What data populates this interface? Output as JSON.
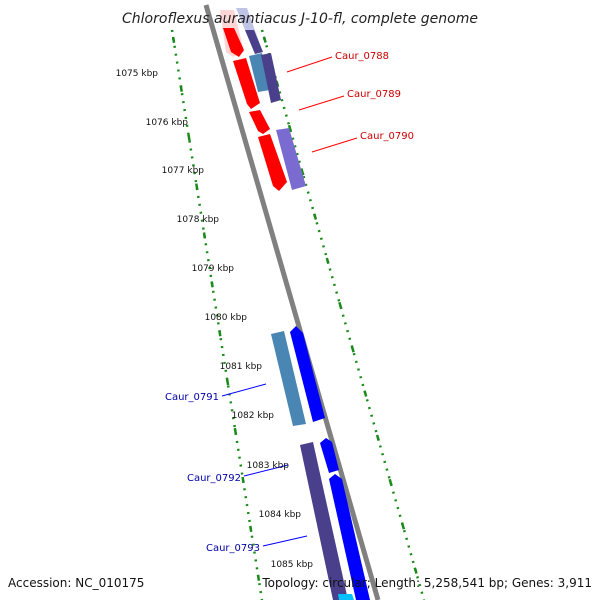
{
  "title": "Chloroflexus aurantiacus J-10-fl, complete genome",
  "ruler": {
    "ticks": [
      "1075 kbp",
      "1076 kbp",
      "1077 kbp",
      "1078 kbp",
      "1079 kbp",
      "1080 kbp",
      "1081 kbp",
      "1082 kbp",
      "1083 kbp",
      "1084 kbp",
      "1085 kbp"
    ]
  },
  "genes": {
    "forward_strand_color": "#ff0000",
    "reverse_strand_color": "#0000ff",
    "labels": [
      {
        "name": "Caur_0788",
        "strand": "forward"
      },
      {
        "name": "Caur_0789",
        "strand": "forward"
      },
      {
        "name": "Caur_0790",
        "strand": "forward"
      },
      {
        "name": "Caur_0791",
        "strand": "reverse"
      },
      {
        "name": "Caur_0792",
        "strand": "reverse"
      },
      {
        "name": "Caur_0793",
        "strand": "reverse"
      }
    ]
  },
  "colors": {
    "backbone": "#808080",
    "ruler_dots": "#1a8a1a",
    "forward_cds": "#ff0000",
    "reverse_cds": "#0000ff",
    "steel_blue": "#4a86b4",
    "slate_purple": "#4a3f8a",
    "lavender": "#7a6bd1"
  },
  "footer": {
    "accession": "Accession: NC_010175",
    "summary": "Topology: circular; Length: 5,258,541 bp; Genes: 3,911"
  }
}
